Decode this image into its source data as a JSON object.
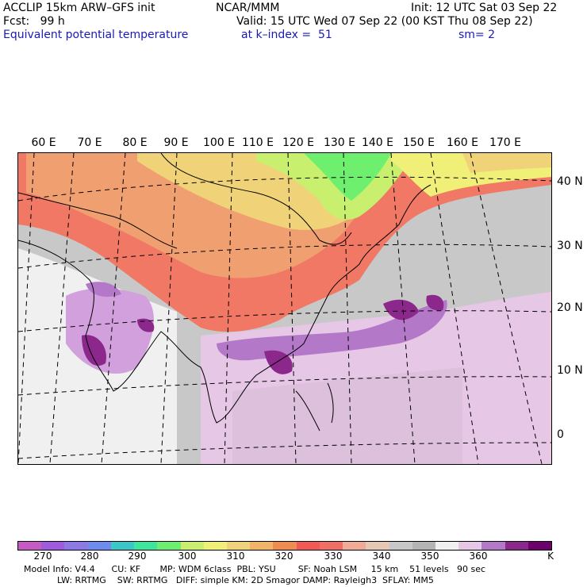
{
  "header": {
    "model": "ACCLIP 15km ARW–GFS init",
    "org": "NCAR/MMM",
    "init": "Init: 12 UTC Sat 03 Sep 22",
    "fcst": "Fcst:   99 h",
    "valid": "Valid: 15 UTC Wed 07 Sep 22 (00 KST Thu 08 Sep 22)",
    "field": "Equivalent potential temperature",
    "level": "at k–index =  51",
    "smooth": "sm= 2"
  },
  "map": {
    "lon_labels": [
      "60 E",
      "70 E",
      "80 E",
      "90 E",
      "100 E",
      "110 E",
      "120 E",
      "130 E",
      "140 E",
      "150 E",
      "160 E",
      "170 E"
    ],
    "lat_labels": [
      "40 N",
      "30 N",
      "20 N",
      "10 N",
      "0"
    ]
  },
  "colorbar": {
    "unit": "K",
    "ticks": [
      "270",
      "280",
      "290",
      "300",
      "310",
      "320",
      "330",
      "340",
      "350",
      "360"
    ],
    "colors": [
      "#c85ac8",
      "#a05adc",
      "#8c78e6",
      "#6e8cf0",
      "#3cc8c8",
      "#3ce69a",
      "#6ef06e",
      "#c8f06e",
      "#f0f078",
      "#f0d278",
      "#f0b464",
      "#f08c50",
      "#f05a50",
      "#f06e64",
      "#f0aa96",
      "#e6c8b4",
      "#c8c8c8",
      "#b4b4b4",
      "#f0f0f0",
      "#e6c8e6",
      "#b478c8",
      "#8c288c",
      "#6e006e"
    ]
  },
  "footer": {
    "line1": "Model Info: V4.4      CU: KF       MP: WDM 6class  PBL: YSU        SF: Noah LSM     15 km    51 levels   90 sec",
    "line2": "LW: RRTMG    SW: RRTMG   DIFF: simple KM: 2D Smagor DAMP: Rayleigh3  SFLAY: MM5"
  }
}
